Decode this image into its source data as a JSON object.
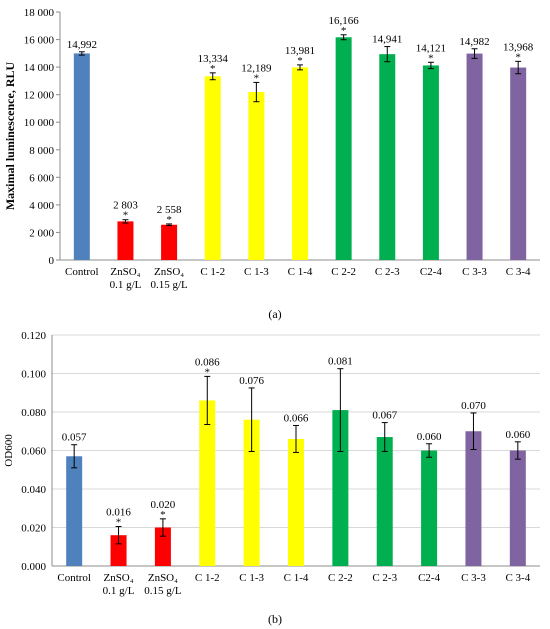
{
  "chart_data": [
    {
      "type": "bar",
      "panel_caption": "(a)",
      "ylabel": "Maximal luminescence, RLU",
      "xlabel": "",
      "ylim": [
        0,
        18000
      ],
      "yticks": [
        "0",
        "2 000",
        "4 000",
        "6 000",
        "8 000",
        "10 000",
        "12 000",
        "14 000",
        "16 000",
        "18 000"
      ],
      "ytick_values": [
        0,
        2000,
        4000,
        6000,
        8000,
        10000,
        12000,
        14000,
        16000,
        18000
      ],
      "grid": false,
      "categories": [
        {
          "lines": [
            "Control"
          ]
        },
        {
          "lines": [
            "ZnSO₄",
            "0.1 g/L"
          ]
        },
        {
          "lines": [
            "ZnSO₄",
            "0.15 g/L"
          ]
        },
        {
          "lines": [
            "C 1-2"
          ]
        },
        {
          "lines": [
            "C 1-3"
          ]
        },
        {
          "lines": [
            "C 1-4"
          ]
        },
        {
          "lines": [
            "C 2-2"
          ]
        },
        {
          "lines": [
            "C 2-3"
          ]
        },
        {
          "lines": [
            "C2-4"
          ]
        },
        {
          "lines": [
            "C 3-3"
          ]
        },
        {
          "lines": [
            "C 3-4"
          ]
        }
      ],
      "values": [
        14992,
        2803,
        2558,
        13334,
        12189,
        13981,
        16166,
        14941,
        14121,
        14982,
        13968
      ],
      "errors": [
        120,
        120,
        60,
        250,
        700,
        180,
        180,
        550,
        230,
        350,
        450
      ],
      "value_labels": [
        "14,992",
        "2 803",
        "2 558",
        "13,334",
        "12,189",
        "13,981",
        "16,166",
        "14,941",
        "14,121",
        "14,982",
        "13,968"
      ],
      "significance": [
        "",
        "*",
        "*",
        "*",
        "*",
        "*",
        "*",
        "",
        "*",
        "",
        "*"
      ],
      "colors": [
        "#4f81bd",
        "#ff0000",
        "#ff0000",
        "#ffff00",
        "#ffff00",
        "#ffff00",
        "#00b050",
        "#00b050",
        "#00b050",
        "#8064a2",
        "#8064a2"
      ]
    },
    {
      "type": "bar",
      "panel_caption": "(b)",
      "ylabel": "OD600",
      "xlabel": "",
      "ylim": [
        0,
        0.12
      ],
      "yticks": [
        "0.000",
        "0.020",
        "0.040",
        "0.060",
        "0.080",
        "0.100",
        "0.120"
      ],
      "ytick_values": [
        0,
        0.02,
        0.04,
        0.06,
        0.08,
        0.1,
        0.12
      ],
      "grid": true,
      "categories": [
        {
          "lines": [
            "Control"
          ]
        },
        {
          "lines": [
            "ZnSO₄",
            "0.1 g/L"
          ]
        },
        {
          "lines": [
            "ZnSO₄",
            "0.15 g/L"
          ]
        },
        {
          "lines": [
            "C 1-2"
          ]
        },
        {
          "lines": [
            "C 1-3"
          ]
        },
        {
          "lines": [
            "C 1-4"
          ]
        },
        {
          "lines": [
            "C 2-2"
          ]
        },
        {
          "lines": [
            "C 2-3"
          ]
        },
        {
          "lines": [
            "C2-4"
          ]
        },
        {
          "lines": [
            "C 3-3"
          ]
        },
        {
          "lines": [
            "C 3-4"
          ]
        }
      ],
      "values": [
        0.057,
        0.016,
        0.02,
        0.086,
        0.076,
        0.066,
        0.081,
        0.067,
        0.06,
        0.07,
        0.06
      ],
      "errors": [
        0.006,
        0.0045,
        0.0045,
        0.0125,
        0.0165,
        0.007,
        0.0215,
        0.0075,
        0.0035,
        0.0095,
        0.0045
      ],
      "value_labels": [
        "0.057",
        "0.016",
        "0.020",
        "0.086",
        "0.076",
        "0.066",
        "0.081",
        "0.067",
        "0.060",
        "0.070",
        "0.060"
      ],
      "significance": [
        "",
        "*",
        "*",
        "*",
        "",
        "",
        "",
        "",
        "",
        "",
        ""
      ],
      "colors": [
        "#4f81bd",
        "#ff0000",
        "#ff0000",
        "#ffff00",
        "#ffff00",
        "#ffff00",
        "#00b050",
        "#00b050",
        "#00b050",
        "#8064a2",
        "#8064a2"
      ]
    }
  ]
}
